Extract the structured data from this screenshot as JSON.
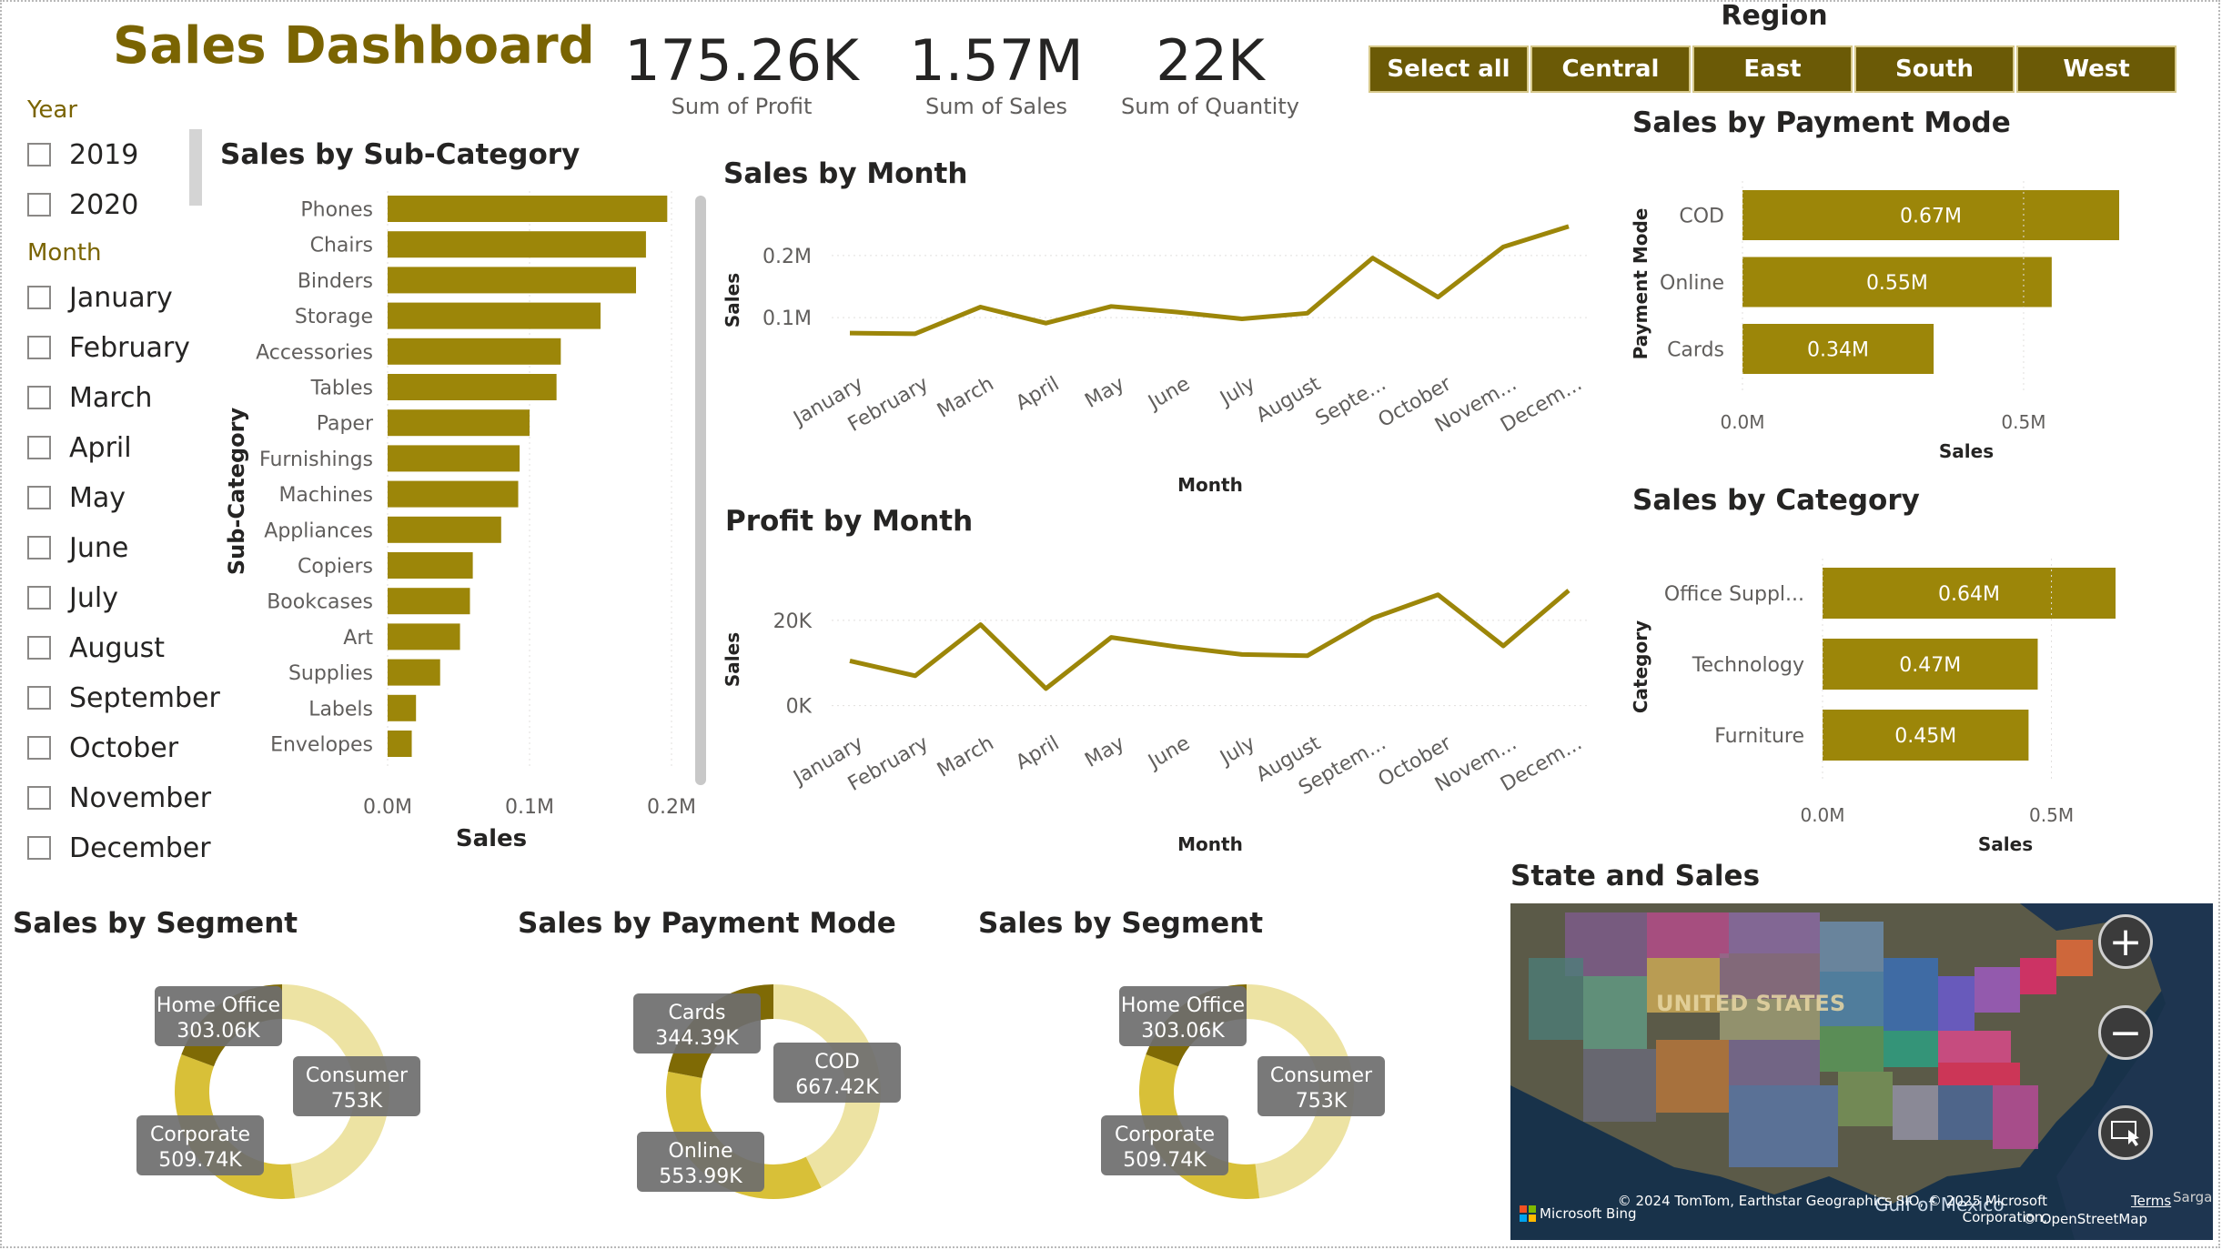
{
  "dashboard": {
    "title": "Sales Dashboard"
  },
  "kpis": [
    {
      "value": "175.26K",
      "label": "Sum of Profit"
    },
    {
      "value": "1.57M",
      "label": "Sum of Sales"
    },
    {
      "value": "22K",
      "label": "Sum of Quantity"
    }
  ],
  "region_slicer": {
    "title": "Region",
    "buttons": [
      "Select all",
      "Central",
      "East",
      "South",
      "West"
    ]
  },
  "year_slicer": {
    "title": "Year",
    "items": [
      "2019",
      "2020"
    ]
  },
  "month_slicer": {
    "title": "Month",
    "items": [
      "January",
      "February",
      "March",
      "April",
      "May",
      "June",
      "July",
      "August",
      "September",
      "October",
      "November",
      "December"
    ]
  },
  "colors": {
    "accent": "#9c8609",
    "title": "#7a6402",
    "button": "#6b5a06",
    "donut_dark": "#7f6a05",
    "donut_mid": "#d8c038",
    "donut_light": "#ede3a3"
  },
  "charts": {
    "subcategory": {
      "title": "Sales by Sub-Category",
      "ylabel": "Sub-Category",
      "xlabel": "Sales",
      "ticks": [
        "0.0M",
        "0.1M",
        "0.2M"
      ]
    },
    "sales_month": {
      "title": "Sales by Month",
      "ylabel": "Sales",
      "xlabel": "Month",
      "ticks": [
        "0.1M",
        "0.2M"
      ],
      "x_labels": [
        "January",
        "February",
        "March",
        "April",
        "May",
        "June",
        "July",
        "August",
        "Septe...",
        "October",
        "Novem...",
        "Decem..."
      ]
    },
    "profit_month": {
      "title": "Profit by Month",
      "ylabel": "Sales",
      "xlabel": "Month",
      "ticks": [
        "0K",
        "20K"
      ],
      "x_labels": [
        "January",
        "February",
        "March",
        "April",
        "May",
        "June",
        "July",
        "August",
        "Septem...",
        "October",
        "Novem...",
        "Decem..."
      ]
    },
    "payment_bar": {
      "title": "Sales by Payment Mode",
      "ylabel": "Payment Mode",
      "xlabel": "Sales",
      "ticks": [
        "0.0M",
        "0.5M"
      ]
    },
    "category_bar": {
      "title": "Sales by Category",
      "ylabel": "Category",
      "xlabel": "Sales",
      "ticks": [
        "0.0M",
        "0.5M"
      ]
    },
    "segment_donut_1": {
      "title": "Sales by Segment"
    },
    "payment_donut": {
      "title": "Sales by Payment Mode"
    },
    "segment_donut_2": {
      "title": "Sales by Segment"
    }
  },
  "map": {
    "title": "State and Sales",
    "country_label": "UNITED STATES",
    "gulf_label": "Gulf of Mexico",
    "attribution": "© 2024 TomTom, Earthstar Geographics SIO, © 2025 Microsoft Corporation,",
    "osm": "© OpenStreetMap",
    "terms": "Terms",
    "bing": "Microsoft Bing",
    "sargasso": "Sargasso",
    "zoom_in": "+",
    "zoom_out": "−"
  },
  "chart_data": [
    {
      "type": "bar",
      "title": "Sales by Sub-Category",
      "xlabel": "Sales",
      "ylabel": "Sub-Category",
      "categories": [
        "Phones",
        "Chairs",
        "Binders",
        "Storage",
        "Accessories",
        "Tables",
        "Paper",
        "Furnishings",
        "Machines",
        "Appliances",
        "Copiers",
        "Bookcases",
        "Art",
        "Supplies",
        "Labels",
        "Envelopes"
      ],
      "values": [
        0.197,
        0.182,
        0.175,
        0.15,
        0.122,
        0.119,
        0.1,
        0.093,
        0.092,
        0.08,
        0.06,
        0.058,
        0.051,
        0.037,
        0.02,
        0.017
      ],
      "xlim": [
        0,
        0.2
      ],
      "unit": "M"
    },
    {
      "type": "line",
      "title": "Sales by Month",
      "xlabel": "Month",
      "ylabel": "Sales",
      "x": [
        "January",
        "February",
        "March",
        "April",
        "May",
        "June",
        "July",
        "August",
        "September",
        "October",
        "November",
        "December"
      ],
      "values": [
        0.075,
        0.074,
        0.117,
        0.091,
        0.118,
        0.109,
        0.098,
        0.107,
        0.196,
        0.133,
        0.214,
        0.247
      ],
      "ylim": [
        0.04,
        0.26
      ],
      "unit": "M"
    },
    {
      "type": "line",
      "title": "Profit by Month",
      "xlabel": "Month",
      "ylabel": "Sales",
      "x": [
        "January",
        "February",
        "March",
        "April",
        "May",
        "June",
        "July",
        "August",
        "September",
        "October",
        "November",
        "December"
      ],
      "values": [
        10500,
        7000,
        19000,
        4000,
        16000,
        13800,
        12000,
        11700,
        20500,
        26000,
        14000,
        27000
      ],
      "ylim": [
        -2000,
        30000
      ]
    },
    {
      "type": "bar",
      "title": "Sales by Payment Mode",
      "xlabel": "Sales",
      "ylabel": "Payment Mode",
      "categories": [
        "COD",
        "Online",
        "Cards"
      ],
      "values": [
        0.67,
        0.55,
        0.34
      ],
      "data_labels": [
        "0.67M",
        "0.55M",
        "0.34M"
      ],
      "xlim": [
        0,
        0.67
      ],
      "unit": "M"
    },
    {
      "type": "bar",
      "title": "Sales by Category",
      "xlabel": "Sales",
      "ylabel": "Category",
      "categories": [
        "Office Suppl...",
        "Technology",
        "Furniture"
      ],
      "values": [
        0.64,
        0.47,
        0.45
      ],
      "data_labels": [
        "0.64M",
        "0.47M",
        "0.45M"
      ],
      "xlim": [
        0,
        0.64
      ],
      "unit": "M"
    },
    {
      "type": "pie",
      "title": "Sales by Segment",
      "labels": [
        "Consumer",
        "Corporate",
        "Home Office"
      ],
      "values": [
        753000,
        509740,
        303060
      ],
      "data_labels": [
        "753K",
        "509.74K",
        "303.06K"
      ]
    },
    {
      "type": "pie",
      "title": "Sales by Payment Mode",
      "labels": [
        "COD",
        "Online",
        "Cards"
      ],
      "values": [
        667420,
        553990,
        344390
      ],
      "data_labels": [
        "667.42K",
        "553.99K",
        "344.39K"
      ]
    },
    {
      "type": "pie",
      "title": "Sales by Segment",
      "labels": [
        "Consumer",
        "Corporate",
        "Home Office"
      ],
      "values": [
        753000,
        509740,
        303060
      ],
      "data_labels": [
        "753K",
        "509.74K",
        "303.06K"
      ]
    }
  ]
}
